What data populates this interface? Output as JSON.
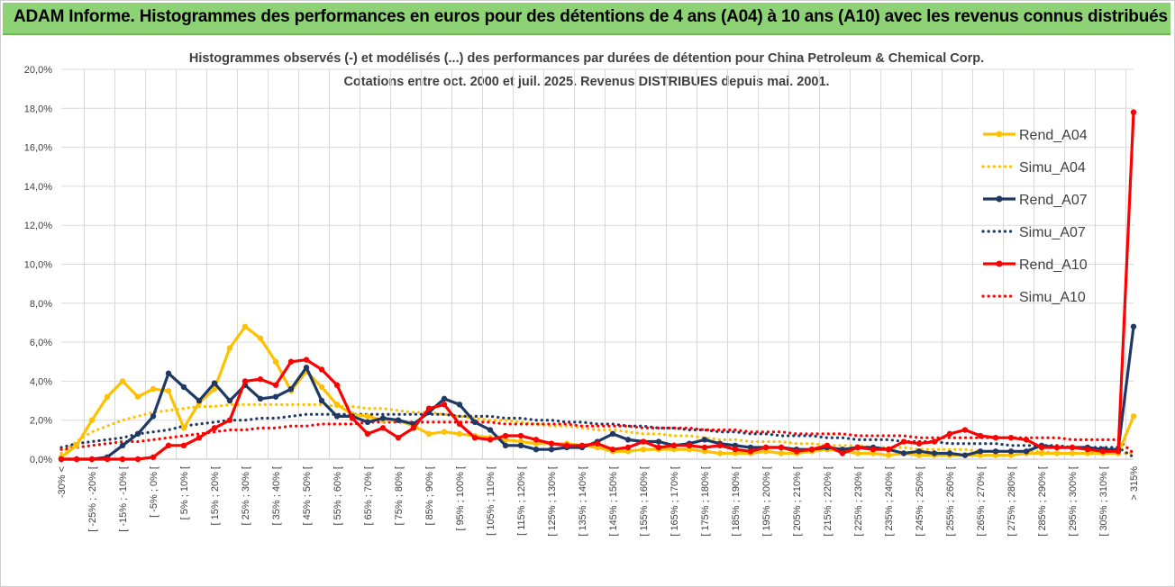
{
  "banner": {
    "title": "ADAM Informe. Histogrammes des performances en euros pour des détentions de 4 ans (A04) à 10 ans (A10) avec les revenus connus distribués"
  },
  "chart_data": {
    "type": "line",
    "title": "Histogrammes observés (-) et modélisés (...) des performances par durées de détention pour China Petroleum & Chemical Corp.",
    "subtitle": "Cotations entre oct. 2000 et juil. 2025. Revenus DISTRIBUES depuis mai. 2001.",
    "xlabel": "",
    "ylabel": "",
    "ylim": [
      0,
      20
    ],
    "yticks": [
      "0,0%",
      "2,0%",
      "4,0%",
      "6,0%",
      "8,0%",
      "10,0%",
      "12,0%",
      "14,0%",
      "16,0%",
      "18,0%",
      "20,0%"
    ],
    "grid": true,
    "legend_position": "right",
    "categories": [
      "-30% <",
      "[ -30% ; -25% [",
      "[ -25% ; -20% [",
      "[ -20% ; -15% [",
      "[ -15% ; -10% [",
      "[ -10% ; -5% [",
      "[ -5% ; 0% [",
      "[ 0% ; 5% [",
      "[ 5% ; 10% [",
      "[ 10% ; 15% [",
      "[ 15% ; 20% [",
      "[ 20% ; 25% [",
      "[ 25% ; 30% [",
      "[ 30% ; 35% [",
      "[ 35% ; 40% [",
      "[ 40% ; 45% [",
      "[ 45% ; 50% [",
      "[ 50% ; 55% [",
      "[ 55% ; 60% [",
      "[ 60% ; 65% [",
      "[ 65% ; 70% [",
      "[ 70% ; 75% [",
      "[ 75% ; 80% [",
      "[ 80% ; 85% [",
      "[ 85% ; 90% [",
      "[ 90% ; 95% [",
      "[ 95% ; 100% [",
      "[ 100% ; 105% [",
      "[ 105% ; 110% [",
      "[ 110% ; 115% [",
      "[ 115% ; 120% [",
      "[ 120% ; 125% [",
      "[ 125% ; 130% [",
      "[ 130% ; 135% [",
      "[ 135% ; 140% [",
      "[ 140% ; 145% [",
      "[ 145% ; 150% [",
      "[ 150% ; 155% [",
      "[ 155% ; 160% [",
      "[ 160% ; 165% [",
      "[ 165% ; 170% [",
      "[ 170% ; 175% [",
      "[ 175% ; 180% [",
      "[ 180% ; 185% [",
      "[ 185% ; 190% [",
      "[ 190% ; 195% [",
      "[ 195% ; 200% [",
      "[ 200% ; 205% [",
      "[ 205% ; 210% [",
      "[ 210% ; 215% [",
      "[ 215% ; 220% [",
      "[ 220% ; 225% [",
      "[ 225% ; 230% [",
      "[ 230% ; 235% [",
      "[ 235% ; 240% [",
      "[ 240% ; 245% [",
      "[ 245% ; 250% [",
      "[ 250% ; 255% [",
      "[ 255% ; 260% [",
      "[ 260% ; 265% [",
      "[ 265% ; 270% [",
      "[ 270% ; 275% [",
      "[ 275% ; 280% [",
      "[ 280% ; 285% [",
      "[ 285% ; 290% [",
      "[ 290% ; 295% [",
      "[ 295% ; 300% [",
      "[ 300% ; 305% [",
      "[ 305% ; 310% [",
      "[ 310% ; 315% [",
      "> 315%"
    ],
    "series": [
      {
        "name": "Rend_A04",
        "color": "#ffc000",
        "style": "solid",
        "markers": true,
        "values": [
          0.1,
          0.7,
          2.0,
          3.2,
          4.0,
          3.2,
          3.6,
          3.5,
          1.6,
          2.9,
          3.6,
          5.7,
          6.8,
          6.2,
          5.0,
          3.5,
          4.5,
          3.7,
          2.8,
          2.3,
          2.2,
          2.0,
          2.0,
          1.7,
          1.3,
          1.4,
          1.3,
          1.2,
          1.1,
          1.0,
          0.9,
          0.8,
          0.8,
          0.8,
          0.7,
          0.6,
          0.4,
          0.4,
          0.5,
          0.5,
          0.5,
          0.5,
          0.4,
          0.3,
          0.3,
          0.3,
          0.4,
          0.3,
          0.3,
          0.4,
          0.5,
          0.4,
          0.3,
          0.3,
          0.2,
          0.3,
          0.2,
          0.2,
          0.2,
          0.2,
          0.2,
          0.2,
          0.2,
          0.3,
          0.3,
          0.3,
          0.3,
          0.3,
          0.3,
          0.3,
          2.2
        ]
      },
      {
        "name": "Simu_A04",
        "color": "#ffc000",
        "style": "dotted",
        "markers": false,
        "values": [
          0.3,
          0.9,
          1.4,
          1.7,
          2.0,
          2.2,
          2.4,
          2.5,
          2.6,
          2.7,
          2.7,
          2.8,
          2.8,
          2.8,
          2.8,
          2.8,
          2.8,
          2.8,
          2.7,
          2.7,
          2.6,
          2.6,
          2.5,
          2.4,
          2.4,
          2.3,
          2.2,
          2.1,
          2.0,
          2.0,
          1.9,
          1.8,
          1.7,
          1.7,
          1.6,
          1.5,
          1.5,
          1.4,
          1.3,
          1.3,
          1.2,
          1.2,
          1.1,
          1.0,
          1.0,
          0.9,
          0.9,
          0.9,
          0.8,
          0.8,
          0.7,
          0.7,
          0.7,
          0.6,
          0.6,
          0.6,
          0.5,
          0.5,
          0.5,
          0.5,
          0.4,
          0.4,
          0.4,
          0.4,
          0.4,
          0.3,
          0.3,
          0.3,
          0.3,
          0.3,
          0.3
        ]
      },
      {
        "name": "Rend_A07",
        "color": "#1f3864",
        "style": "solid",
        "markers": true,
        "values": [
          0.0,
          0.0,
          0.0,
          0.1,
          0.7,
          1.3,
          2.2,
          4.4,
          3.7,
          3.0,
          3.9,
          3.0,
          3.8,
          3.1,
          3.2,
          3.6,
          4.7,
          3.0,
          2.2,
          2.2,
          1.9,
          2.1,
          2.0,
          1.8,
          2.4,
          3.1,
          2.8,
          1.9,
          1.5,
          0.7,
          0.7,
          0.5,
          0.5,
          0.6,
          0.6,
          0.9,
          1.3,
          1.0,
          0.9,
          0.9,
          0.7,
          0.8,
          1.0,
          0.8,
          0.7,
          0.6,
          0.6,
          0.6,
          0.5,
          0.5,
          0.6,
          0.5,
          0.6,
          0.6,
          0.5,
          0.3,
          0.4,
          0.3,
          0.3,
          0.2,
          0.4,
          0.4,
          0.4,
          0.4,
          0.7,
          0.6,
          0.6,
          0.6,
          0.5,
          0.5,
          6.8
        ]
      },
      {
        "name": "Simu_A07",
        "color": "#1f3864",
        "style": "dotted",
        "markers": false,
        "values": [
          0.6,
          0.8,
          0.9,
          1.0,
          1.1,
          1.3,
          1.4,
          1.5,
          1.7,
          1.8,
          1.9,
          2.0,
          2.0,
          2.1,
          2.1,
          2.2,
          2.3,
          2.3,
          2.3,
          2.3,
          2.3,
          2.3,
          2.3,
          2.3,
          2.3,
          2.3,
          2.2,
          2.2,
          2.2,
          2.1,
          2.1,
          2.0,
          2.0,
          1.9,
          1.9,
          1.8,
          1.8,
          1.7,
          1.7,
          1.6,
          1.6,
          1.5,
          1.5,
          1.4,
          1.4,
          1.3,
          1.3,
          1.2,
          1.2,
          1.2,
          1.1,
          1.1,
          1.0,
          1.0,
          1.0,
          0.9,
          0.9,
          0.9,
          0.8,
          0.8,
          0.8,
          0.8,
          0.7,
          0.7,
          0.7,
          0.7,
          0.6,
          0.6,
          0.6,
          0.6,
          0.1
        ]
      },
      {
        "name": "Rend_A10",
        "color": "#ff0000",
        "style": "solid",
        "markers": true,
        "values": [
          0.0,
          0.0,
          0.0,
          0.0,
          0.0,
          0.0,
          0.1,
          0.7,
          0.7,
          1.1,
          1.6,
          2.0,
          4.0,
          4.1,
          3.8,
          5.0,
          5.1,
          4.6,
          3.8,
          2.1,
          1.3,
          1.6,
          1.1,
          1.6,
          2.6,
          2.8,
          1.8,
          1.1,
          1.0,
          1.2,
          1.2,
          1.0,
          0.8,
          0.7,
          0.7,
          0.8,
          0.5,
          0.6,
          0.9,
          0.6,
          0.7,
          0.7,
          0.6,
          0.7,
          0.5,
          0.4,
          0.6,
          0.6,
          0.4,
          0.5,
          0.7,
          0.3,
          0.6,
          0.5,
          0.5,
          0.9,
          0.8,
          0.9,
          1.3,
          1.5,
          1.2,
          1.1,
          1.1,
          1.0,
          0.6,
          0.6,
          0.6,
          0.5,
          0.4,
          0.4,
          17.8
        ]
      },
      {
        "name": "Simu_A10",
        "color": "#ff0000",
        "style": "dotted",
        "markers": false,
        "values": [
          0.5,
          0.6,
          0.7,
          0.8,
          0.9,
          0.9,
          1.0,
          1.1,
          1.2,
          1.3,
          1.4,
          1.5,
          1.5,
          1.6,
          1.6,
          1.7,
          1.7,
          1.8,
          1.8,
          1.8,
          1.9,
          1.9,
          1.9,
          1.9,
          1.9,
          1.9,
          1.9,
          1.9,
          1.9,
          1.8,
          1.8,
          1.8,
          1.8,
          1.8,
          1.7,
          1.7,
          1.7,
          1.7,
          1.6,
          1.6,
          1.6,
          1.6,
          1.5,
          1.5,
          1.5,
          1.4,
          1.4,
          1.4,
          1.3,
          1.3,
          1.3,
          1.3,
          1.2,
          1.2,
          1.2,
          1.2,
          1.1,
          1.1,
          1.1,
          1.1,
          1.1,
          1.1,
          1.1,
          1.1,
          1.1,
          1.1,
          1.0,
          1.0,
          1.0,
          1.0,
          0.3
        ]
      }
    ]
  }
}
